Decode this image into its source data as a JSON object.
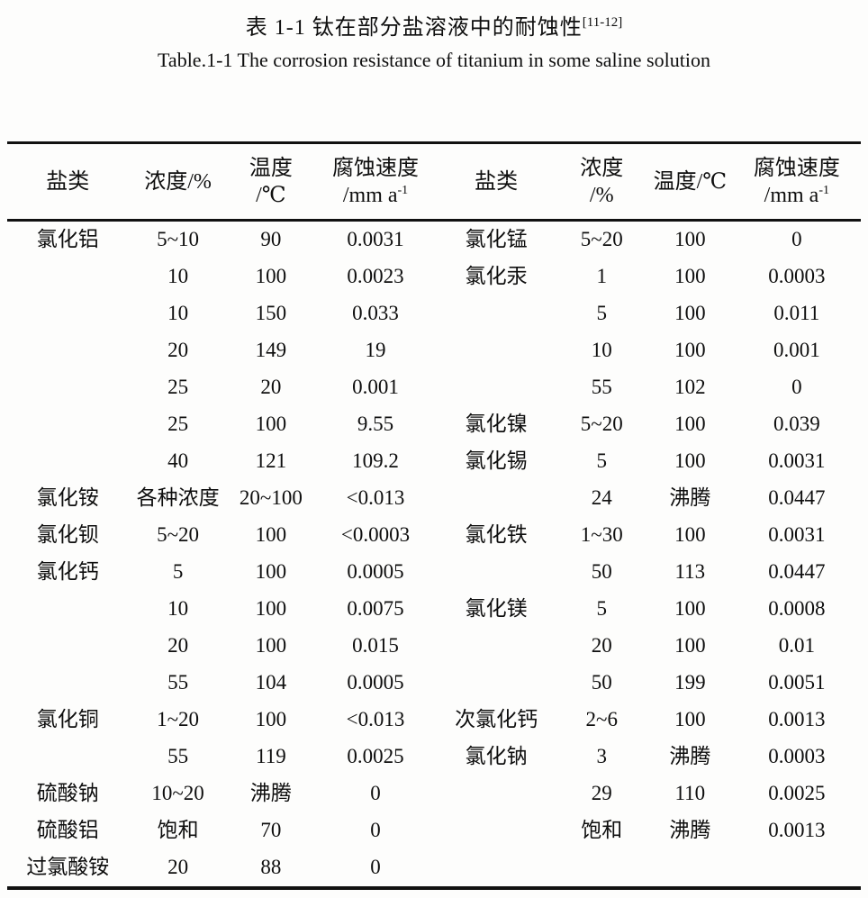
{
  "title": {
    "zh": "表 1-1 钛在部分盐溶液中的耐蚀性",
    "zh_ref_sup": "[11-12]",
    "en": "Table.1-1 The corrosion resistance of titanium in some saline solution"
  },
  "table": {
    "header_left": {
      "salt": "盐类",
      "concentration": "浓度/%",
      "temperature_l1": "温度",
      "temperature_l2": "/℃",
      "rate_l1": "腐蚀速度",
      "rate_l2_base": "/mm a",
      "rate_l2_sup": "-1"
    },
    "header_right": {
      "salt": "盐类",
      "concentration_l1": "浓度",
      "concentration_l2": "/%",
      "temperature": "温度/℃",
      "rate_l1": "腐蚀速度",
      "rate_l2_base": "/mm a",
      "rate_l2_sup": "-1"
    },
    "rows": [
      {
        "cells": [
          "氯化铝",
          "5~10",
          "90",
          "0.0031",
          "氯化锰",
          "5~20",
          "100",
          "0"
        ]
      },
      {
        "cells": [
          "",
          "10",
          "100",
          "0.0023",
          "氯化汞",
          "1",
          "100",
          "0.0003"
        ]
      },
      {
        "cells": [
          "",
          "10",
          "150",
          "0.033",
          "",
          "5",
          "100",
          "0.011"
        ]
      },
      {
        "cells": [
          "",
          "20",
          "149",
          "19",
          "",
          "10",
          "100",
          "0.001"
        ]
      },
      {
        "cells": [
          "",
          "25",
          "20",
          "0.001",
          "",
          "55",
          "102",
          "0"
        ]
      },
      {
        "cells": [
          "",
          "25",
          "100",
          "9.55",
          "氯化镍",
          "5~20",
          "100",
          "0.039"
        ]
      },
      {
        "cells": [
          "",
          "40",
          "121",
          "109.2",
          "氯化锡",
          "5",
          "100",
          "0.0031"
        ]
      },
      {
        "cells": [
          "氯化铵",
          "各种浓度",
          "20~100",
          "<0.013",
          "",
          "24",
          "沸腾",
          "0.0447"
        ]
      },
      {
        "cells": [
          "氯化钡",
          "5~20",
          "100",
          "<0.0003",
          "氯化铁",
          "1~30",
          "100",
          "0.0031"
        ]
      },
      {
        "cells": [
          "氯化钙",
          "5",
          "100",
          "0.0005",
          "",
          "50",
          "113",
          "0.0447"
        ]
      },
      {
        "cells": [
          "",
          "10",
          "100",
          "0.0075",
          "氯化镁",
          "5",
          "100",
          "0.0008"
        ]
      },
      {
        "cells": [
          "",
          "20",
          "100",
          "0.015",
          "",
          "20",
          "100",
          "0.01"
        ]
      },
      {
        "cells": [
          "",
          "55",
          "104",
          "0.0005",
          "",
          "50",
          "199",
          "0.0051"
        ]
      },
      {
        "cells": [
          "氯化铜",
          "1~20",
          "100",
          "<0.013",
          "次氯化钙",
          "2~6",
          "100",
          "0.0013"
        ]
      },
      {
        "cells": [
          "",
          "55",
          "119",
          "0.0025",
          "氯化钠",
          "3",
          "沸腾",
          "0.0003"
        ]
      },
      {
        "cells": [
          "硫酸钠",
          "10~20",
          "沸腾",
          "0",
          "",
          "29",
          "110",
          "0.0025"
        ]
      },
      {
        "cells": [
          "硫酸铝",
          "饱和",
          "70",
          "0",
          "",
          "饱和",
          "沸腾",
          "0.0013"
        ]
      },
      {
        "cells": [
          "过氯酸铵",
          "20",
          "88",
          "0",
          "",
          "",
          "",
          ""
        ]
      }
    ]
  }
}
